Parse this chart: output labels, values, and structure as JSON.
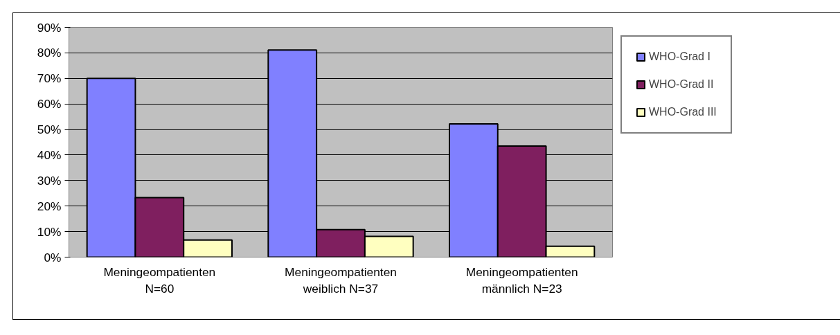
{
  "chart_data": {
    "type": "bar",
    "categories": [
      "Meningeompatienten\nN=60",
      "Meningeompatienten\nweiblich N=37",
      "Meningeompatienten\nmännlich N=23"
    ],
    "series": [
      {
        "name": "WHO-Grad I",
        "color": "#8080ff",
        "values": [
          70.0,
          81.1,
          52.2
        ]
      },
      {
        "name": "WHO-Grad II",
        "color": "#7f1f5f",
        "values": [
          23.3,
          10.8,
          43.5
        ]
      },
      {
        "name": "WHO-Grad III",
        "color": "#ffffc0",
        "values": [
          6.7,
          8.1,
          4.3
        ]
      }
    ],
    "ylim": [
      0,
      90
    ],
    "yticks": [
      {
        "value": 0,
        "label": "0%"
      },
      {
        "value": 10,
        "label": "10%"
      },
      {
        "value": 20,
        "label": "20%"
      },
      {
        "value": 30,
        "label": "30%"
      },
      {
        "value": 40,
        "label": "40%"
      },
      {
        "value": 50,
        "label": "50%"
      },
      {
        "value": 60,
        "label": "60%"
      },
      {
        "value": 70,
        "label": "70%"
      },
      {
        "value": 80,
        "label": "80%"
      },
      {
        "value": 90,
        "label": "90%"
      }
    ],
    "grid": "y",
    "legend": "right"
  }
}
